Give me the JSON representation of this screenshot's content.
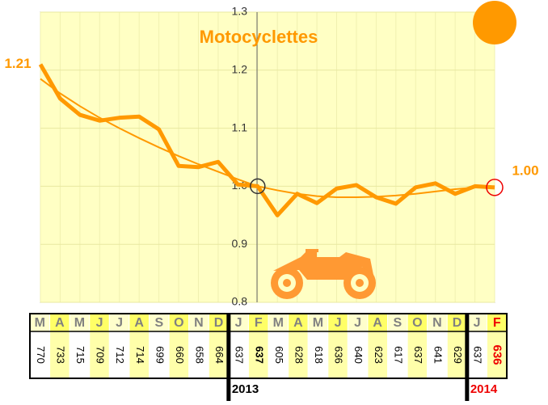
{
  "chart_data": {
    "type": "line",
    "title": "Motocyclettes",
    "categories": [
      "M",
      "A",
      "M",
      "J",
      "J",
      "A",
      "S",
      "O",
      "N",
      "D",
      "J",
      "F",
      "M",
      "A",
      "M",
      "J",
      "J",
      "A",
      "S",
      "O",
      "N",
      "D",
      "J",
      "F"
    ],
    "series": [
      {
        "color": "#ff9900",
        "values": [
          1.21,
          1.151,
          1.123,
          1.113,
          1.118,
          1.12,
          1.098,
          1.035,
          1.033,
          1.042,
          1.003,
          1.0,
          0.95,
          0.987,
          0.971,
          0.996,
          1.002,
          0.981,
          0.97,
          0.998,
          1.005,
          0.987,
          1.0,
          0.998
        ],
        "value_labels": [
          "1.21",
          null,
          null,
          null,
          null,
          null,
          null,
          null,
          null,
          null,
          null,
          null,
          null,
          null,
          null,
          null,
          null,
          null,
          null,
          null,
          null,
          null,
          null,
          "1.00"
        ]
      },
      {
        "color": "#ff9900",
        "values": [
          1.185,
          1.16,
          1.138,
          1.118,
          1.1,
          1.083,
          1.067,
          1.052,
          1.038,
          1.025,
          1.012,
          1.0,
          0.993,
          0.987,
          0.983,
          0.981,
          0.981,
          0.982,
          0.984,
          0.987,
          0.991,
          0.995,
          0.998,
          1.0
        ]
      }
    ],
    "ylim": [
      0.8,
      1.3
    ],
    "yticks": [
      0.8,
      0.9,
      {
        "value": 1.0,
        "label": "1.0"
      },
      1.1,
      1.2,
      1.3
    ],
    "grid": true
  },
  "table": {
    "counts": [
      770,
      733,
      715,
      709,
      712,
      714,
      699,
      660,
      658,
      664,
      637,
      637,
      605,
      628,
      618,
      636,
      640,
      623,
      617,
      637,
      641,
      629,
      637,
      636
    ],
    "years": [
      "2013",
      "2014"
    ]
  }
}
